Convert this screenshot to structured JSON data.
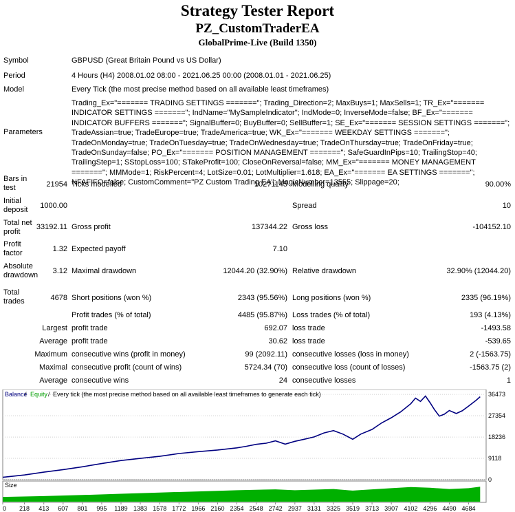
{
  "header": {
    "title": "Strategy Tester Report",
    "subtitle": "PZ_CustomTraderEA",
    "build": "GlobalPrime-Live (Build 1350)"
  },
  "info": {
    "symbol_label": "Symbol",
    "symbol_value": "GBPUSD (Great Britain Pound vs US Dollar)",
    "period_label": "Period",
    "period_value": "4 Hours (H4) 2008.01.02 08:00 - 2021.06.25 00:00 (2008.01.01 - 2021.06.25)",
    "model_label": "Model",
    "model_value": "Every Tick (the most precise method based on all available least timeframes)",
    "parameters_label": "Parameters",
    "parameters_value": "Trading_Ex=\"======= TRADING SETTINGS =======\"; Trading_Direction=2; MaxBuys=1; MaxSells=1; TR_Ex=\"======= INDICATOR SETTINGS =======\"; IndName=\"MySampleIndicator\"; IndMode=0; InverseMode=false; BF_Ex=\"======= INDICATOR BUFFERS =======\"; SignalBuffer=0; BuyBuffer=0; SellBuffer=1; SE_Ex=\"======= SESSION SETTINGS =======\"; TradeAssian=true; TradeEurope=true; TradeAmerica=true; WK_Ex=\"======= WEEKDAY SETTINGS =======\"; TradeOnMonday=true; TradeOnTuesday=true; TradeOnWednesday=true; TradeOnThursday=true; TradeOnFriday=true; TradeOnSunday=false; PO_Ex=\"======= POSITION MANAGEMENT =======\"; SafeGuardInPips=10; TrailingStop=40; TrailingStep=1; SStopLoss=100; STakeProfit=100; CloseOnReversal=false; MM_Ex=\"======= MONEY MANAGEMENT =======\"; MMMode=1; RiskPercent=4; LotSize=0.01; LotMultiplier=1.618; EA_Ex=\"======= EA SETTINGS =======\"; NFAFIFO=false; CustomComment=\"PZ Custom Trading EA\"; MagicNumber=13555; Slippage=20;"
  },
  "stats": {
    "bars_label": "Bars in test",
    "bars_value": "21954",
    "ticks_label": "Ticks modelled",
    "ticks_value": "10271145",
    "quality_label": "Modelling quality",
    "quality_value": "90.00%",
    "deposit_label": "Initial deposit",
    "deposit_value": "1000.00",
    "spread_label": "Spread",
    "spread_value": "10",
    "netprofit_label": "Total net profit",
    "netprofit_value": "33192.11",
    "grossprofit_label": "Gross profit",
    "grossprofit_value": "137344.22",
    "grossloss_label": "Gross loss",
    "grossloss_value": "-104152.10",
    "pf_label": "Profit factor",
    "pf_value": "1.32",
    "payoff_label": "Expected payoff",
    "payoff_value": "7.10",
    "absdd_label": "Absolute drawdown",
    "absdd_value": "3.12",
    "maxdd_label": "Maximal drawdown",
    "maxdd_value": "12044.20 (32.90%)",
    "reldd_label": "Relative drawdown",
    "reldd_value": "32.90% (12044.20)",
    "trades_label": "Total trades",
    "trades_value": "4678",
    "short_label": "Short positions (won %)",
    "short_value": "2343 (95.56%)",
    "long_label": "Long positions (won %)",
    "long_value": "2335 (96.19%)",
    "ptrades_label": "Profit trades (% of total)",
    "ptrades_value": "4485 (95.87%)",
    "ltrades_label": "Loss trades (% of total)",
    "ltrades_value": "193 (4.13%)",
    "largest_label": "Largest",
    "lp_label": "profit trade",
    "lp_value": "692.07",
    "ll_label": "loss trade",
    "ll_value": "-1493.58",
    "average_label": "Average",
    "ap_label": "profit trade",
    "ap_value": "30.62",
    "al_label": "loss trade",
    "al_value": "-539.65",
    "maximum_label": "Maximum",
    "mcw_label": "consecutive wins (profit in money)",
    "mcw_value": "99 (2092.11)",
    "mcl_label": "consecutive losses (loss in money)",
    "mcl_value": "2 (-1563.75)",
    "maximal_label": "Maximal",
    "mcp_label": "consecutive profit (count of wins)",
    "mcp_value": "5724.34 (70)",
    "mcll_label": "consecutive loss (count of losses)",
    "mcll_value": "-1563.75 (2)",
    "average2_label": "Average",
    "acw_label": "consecutive wins",
    "acw_value": "24",
    "acl_label": "consecutive losses",
    "acl_value": "1"
  },
  "chart_data": {
    "type": "line",
    "legend": {
      "balance": "Balance",
      "sep1": " / ",
      "equity": "Equity",
      "sep2": " / ",
      "tick": "Every tick (the most precise method based on all available least timeframes to generate each tick)"
    },
    "size_label": "Size",
    "y_ticks": [
      "36473",
      "27354",
      "18236",
      "9118",
      "0"
    ],
    "y_tick_values": [
      36473,
      27354,
      18236,
      9118,
      0
    ],
    "x_ticks": [
      "0",
      "218",
      "413",
      "607",
      "801",
      "995",
      "1189",
      "1383",
      "1578",
      "1772",
      "1966",
      "2160",
      "2354",
      "2548",
      "2742",
      "2937",
      "3131",
      "3325",
      "3519",
      "3713",
      "3907",
      "4102",
      "4296",
      "4490",
      "4684"
    ],
    "ylim": [
      0,
      38000
    ],
    "xlim": [
      0,
      4860
    ],
    "colors": {
      "balance": "#000080",
      "equity": "#00aa00",
      "size": "#00b000",
      "grid": "#c0c0c0"
    },
    "balance": [
      [
        0,
        1000
      ],
      [
        218,
        2000
      ],
      [
        413,
        3200
      ],
      [
        607,
        4300
      ],
      [
        801,
        5500
      ],
      [
        995,
        6900
      ],
      [
        1189,
        8200
      ],
      [
        1383,
        9100
      ],
      [
        1578,
        10000
      ],
      [
        1772,
        11200
      ],
      [
        1966,
        12000
      ],
      [
        2160,
        12700
      ],
      [
        2354,
        13600
      ],
      [
        2450,
        14300
      ],
      [
        2548,
        15100
      ],
      [
        2650,
        15600
      ],
      [
        2742,
        16600
      ],
      [
        2840,
        15200
      ],
      [
        2937,
        16400
      ],
      [
        3031,
        17300
      ],
      [
        3131,
        18300
      ],
      [
        3230,
        20000
      ],
      [
        3325,
        21000
      ],
      [
        3420,
        19500
      ],
      [
        3519,
        17300
      ],
      [
        3600,
        19500
      ],
      [
        3713,
        21500
      ],
      [
        3810,
        24300
      ],
      [
        3907,
        26500
      ],
      [
        4000,
        29000
      ],
      [
        4102,
        32500
      ],
      [
        4150,
        34900
      ],
      [
        4200,
        33500
      ],
      [
        4250,
        35800
      ],
      [
        4296,
        33000
      ],
      [
        4340,
        30000
      ],
      [
        4390,
        27200
      ],
      [
        4440,
        28000
      ],
      [
        4490,
        29600
      ],
      [
        4560,
        28300
      ],
      [
        4620,
        29500
      ],
      [
        4684,
        31500
      ],
      [
        4760,
        34000
      ],
      [
        4800,
        35500
      ]
    ],
    "size": [
      [
        0,
        0.3
      ],
      [
        413,
        0.35
      ],
      [
        801,
        0.42
      ],
      [
        1189,
        0.5
      ],
      [
        1578,
        0.58
      ],
      [
        1966,
        0.65
      ],
      [
        2354,
        0.72
      ],
      [
        2742,
        0.78
      ],
      [
        2937,
        0.72
      ],
      [
        3131,
        0.76
      ],
      [
        3325,
        0.8
      ],
      [
        3519,
        0.7
      ],
      [
        3713,
        0.78
      ],
      [
        3907,
        0.85
      ],
      [
        4102,
        0.92
      ],
      [
        4296,
        0.88
      ],
      [
        4490,
        0.8
      ],
      [
        4684,
        0.85
      ],
      [
        4800,
        0.95
      ]
    ]
  }
}
